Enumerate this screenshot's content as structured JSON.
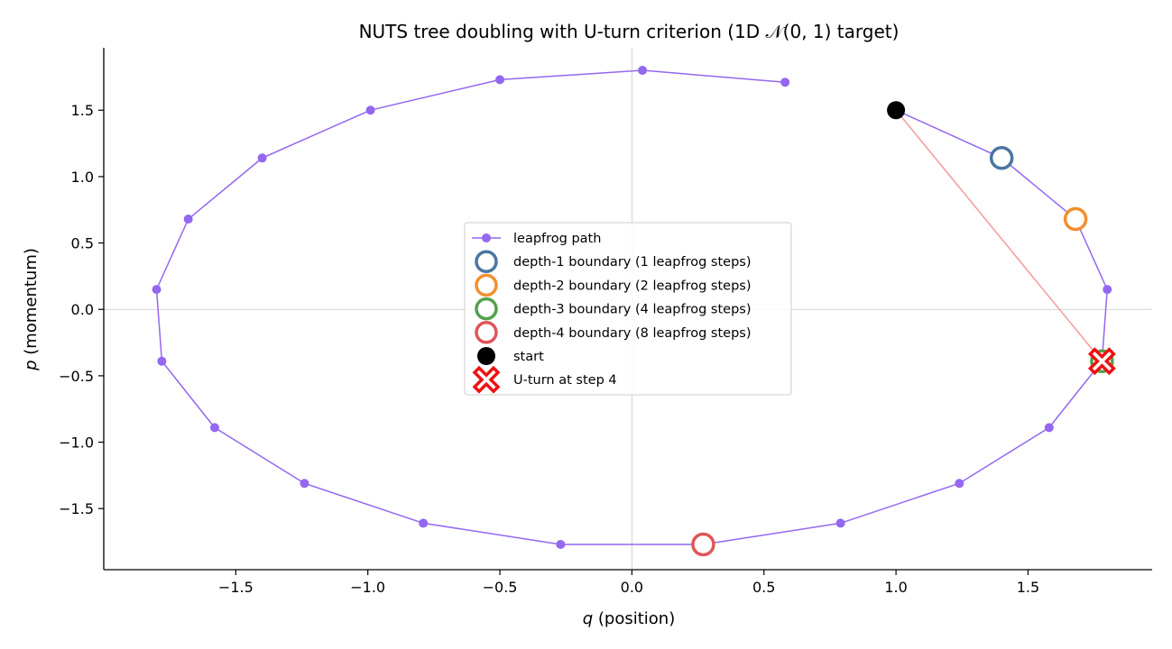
{
  "chart_data": {
    "type": "scatter",
    "title": "NUTS tree doubling with U-turn criterion (1D 𝒩(0, 1) target)",
    "xlabel": "q (position)",
    "ylabel": "p (momentum)",
    "xlim": [
      -2.0,
      1.97
    ],
    "ylim": [
      -1.96,
      1.97
    ],
    "x_ticks": [
      -1.5,
      -1.0,
      -0.5,
      0.0,
      0.5,
      1.0,
      1.5
    ],
    "x_tick_labels": [
      "−1.5",
      "−1.0",
      "−0.5",
      "0.0",
      "0.5",
      "1.0",
      "1.5"
    ],
    "y_ticks": [
      -1.5,
      -1.0,
      -0.5,
      0.0,
      0.5,
      1.0,
      1.5
    ],
    "y_tick_labels": [
      "−1.5",
      "−1.0",
      "−0.5",
      "0.0",
      "0.5",
      "1.0",
      "1.5"
    ],
    "grid": false,
    "zero_lines": true,
    "legend_position": "center",
    "leapfrog_path": {
      "name": "leapfrog path",
      "color": "#9467f0",
      "points": [
        [
          1.0,
          1.5
        ],
        [
          1.4,
          1.14
        ],
        [
          1.68,
          0.68
        ],
        [
          1.8,
          0.15
        ],
        [
          1.78,
          -0.39
        ],
        [
          1.58,
          -0.89
        ],
        [
          1.24,
          -1.31
        ],
        [
          0.79,
          -1.61
        ],
        [
          0.27,
          -1.77
        ],
        [
          -0.27,
          -1.77
        ],
        [
          -0.79,
          -1.61
        ],
        [
          -1.24,
          -1.31
        ],
        [
          -1.58,
          -0.89
        ],
        [
          -1.78,
          -0.39
        ],
        [
          -1.8,
          0.15
        ],
        [
          -1.68,
          0.68
        ],
        [
          -1.4,
          1.14
        ],
        [
          -0.99,
          1.5
        ],
        [
          -0.5,
          1.73
        ],
        [
          0.04,
          1.8
        ],
        [
          0.58,
          1.71
        ]
      ]
    },
    "boundaries": [
      {
        "name": "depth-1 boundary (1 leapfrog steps)",
        "color": "#4c76a2",
        "x": 1.4,
        "y": 1.14
      },
      {
        "name": "depth-2 boundary (2 leapfrog steps)",
        "color": "#f18f2e",
        "x": 1.68,
        "y": 0.68
      },
      {
        "name": "depth-3 boundary (4 leapfrog steps)",
        "color": "#53a04c",
        "x": 1.78,
        "y": -0.39
      },
      {
        "name": "depth-4 boundary (8 leapfrog steps)",
        "color": "#df5658",
        "x": 0.27,
        "y": -1.77
      }
    ],
    "start": {
      "name": "start",
      "color": "#000000",
      "x": 1.0,
      "y": 1.5
    },
    "uturn": {
      "name": "U-turn at step 4",
      "color": "#ee1111",
      "x": 1.78,
      "y": -0.39
    },
    "uturn_line": {
      "color": "#f4a0a0",
      "from": [
        1.0,
        1.5
      ],
      "to": [
        1.78,
        -0.39
      ]
    }
  }
}
